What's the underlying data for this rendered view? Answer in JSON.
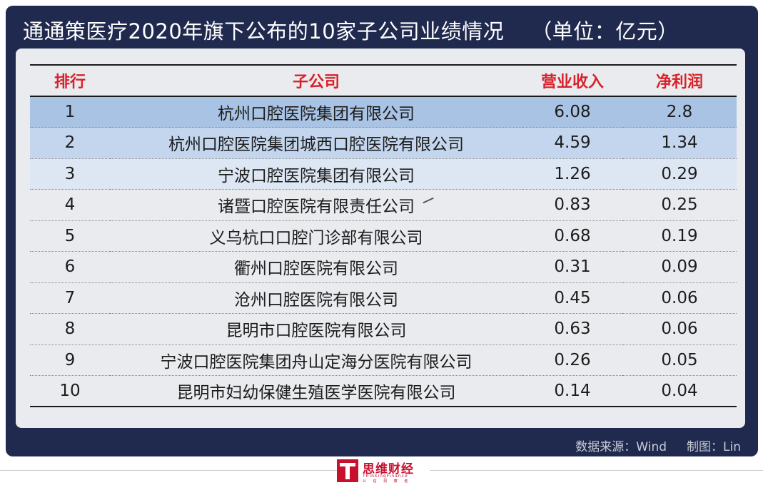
{
  "title": "通通策医疗2020年旗下公布的10家子公司业绩情况",
  "unit": "（单位：亿元）",
  "table": {
    "headers": [
      "排行",
      "子公司",
      "营业收入",
      "净利润"
    ],
    "rows": [
      [
        "1",
        "杭州口腔医院集团有限公司",
        "6.08",
        "2.8"
      ],
      [
        "2",
        "杭州口腔医院集团城西口腔医院有限公司",
        "4.59",
        "1.34"
      ],
      [
        "3",
        "宁波口腔医院集团有限公司",
        "1.26",
        "0.29"
      ],
      [
        "4",
        "诸暨口腔医院有限责任公司",
        "0.83",
        "0.25"
      ],
      [
        "5",
        "义乌杭口口腔门诊部有限公司",
        "0.68",
        "0.19"
      ],
      [
        "6",
        "衢州口腔医院有限公司",
        "0.31",
        "0.09"
      ],
      [
        "7",
        "沧州口腔医院有限公司",
        "0.45",
        "0.06"
      ],
      [
        "8",
        "昆明市口腔医院有限公司",
        "0.63",
        "0.06"
      ],
      [
        "9",
        "宁波口腔医院集团舟山定海分医院有限公司",
        "0.26",
        "0.05"
      ],
      [
        "10",
        "昆明市妇幼保健生殖医学医院有限公司",
        "0.14",
        "0.04"
      ]
    ]
  },
  "footer": {
    "source": "数据来源：Wind",
    "credit": "制图：Lin"
  },
  "logo": {
    "name": "思维财经",
    "english": "ThinkingFinance",
    "tagline": "公 信 洞 察 者"
  },
  "colors": {
    "background": "#202a4e",
    "header_text": "#d8222a",
    "highlight_1": "#a9c3e4",
    "highlight_2": "#c4d6ee",
    "highlight_3": "#dde7f4"
  }
}
